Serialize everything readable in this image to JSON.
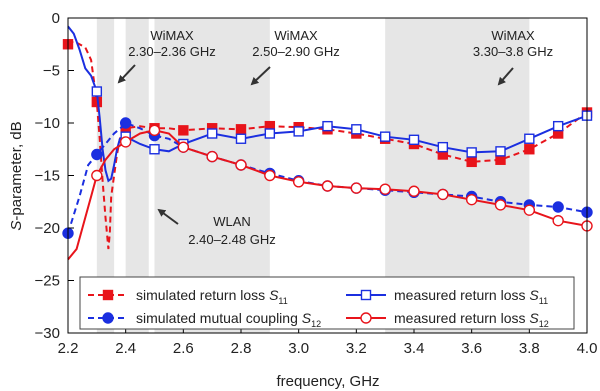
{
  "chart_data": {
    "type": "line",
    "xlabel": "frequency, GHz",
    "ylabel": "S-parameter, dB",
    "xlim": [
      2.2,
      4.0
    ],
    "ylim": [
      -30,
      0
    ],
    "x_ticks": [
      "2.2",
      "2.4",
      "2.6",
      "2.8",
      "3.0",
      "3.2",
      "3.4",
      "3.6",
      "3.8",
      "4.0"
    ],
    "y_ticks": [
      "0",
      "−5",
      "−10",
      "−15",
      "−20",
      "−25",
      "−30"
    ],
    "bands": [
      {
        "x0": 2.3,
        "x1": 2.36,
        "name": "WiMAX",
        "range": "2.30–2.36 GHz"
      },
      {
        "x0": 2.4,
        "x1": 2.48,
        "name": "WLAN",
        "range": "2.40–2.48 GHz"
      },
      {
        "x0": 2.5,
        "x1": 2.9,
        "name": "WiMAX",
        "range": "2.50–2.90 GHz"
      },
      {
        "x0": 3.3,
        "x1": 3.8,
        "name": "WiMAX",
        "range": "3.30–3.8 GHz"
      }
    ],
    "series": [
      {
        "name": "simulated return loss S11",
        "label": "simulated return loss ",
        "symbol": "S",
        "subscript": "11",
        "color": "#e8141b",
        "dash": "6,4",
        "marker": "square-filled",
        "markers_x": [
          2.2,
          2.3,
          2.4,
          2.5,
          2.6,
          2.7,
          2.8,
          2.9,
          3.0,
          3.1,
          3.2,
          3.3,
          3.4,
          3.5,
          3.6,
          3.7,
          3.8,
          3.9,
          4.0
        ],
        "x": [
          2.2,
          2.22,
          2.24,
          2.26,
          2.28,
          2.3,
          2.31,
          2.32,
          2.33,
          2.34,
          2.345,
          2.35,
          2.36,
          2.37,
          2.38,
          2.4,
          2.45,
          2.5,
          2.55,
          2.6,
          2.7,
          2.8,
          2.9,
          3.0,
          3.1,
          3.2,
          3.3,
          3.4,
          3.5,
          3.6,
          3.7,
          3.8,
          3.9,
          4.0
        ],
        "y": [
          -2.5,
          -2.2,
          -2.5,
          -2.8,
          -4.0,
          -8.0,
          -11.5,
          -15.5,
          -19.0,
          -22.0,
          -20.5,
          -17.0,
          -15.0,
          -13.0,
          -11.5,
          -10.5,
          -10.3,
          -10.5,
          -10.5,
          -10.7,
          -10.5,
          -10.6,
          -10.3,
          -10.4,
          -10.6,
          -11.0,
          -11.5,
          -12.0,
          -13.0,
          -13.7,
          -13.5,
          -12.5,
          -11.0,
          -9.0
        ]
      },
      {
        "name": "simulated mutual coupling S12",
        "label": "simulated mutual coupling ",
        "symbol": "S",
        "subscript": "12",
        "color": "#1b2fe0",
        "dash": "6,4",
        "marker": "circle-filled",
        "markers_x": [
          2.2,
          2.3,
          2.4,
          2.5,
          2.6,
          2.7,
          2.8,
          2.9,
          3.0,
          3.1,
          3.2,
          3.3,
          3.4,
          3.5,
          3.6,
          3.7,
          3.8,
          3.9,
          4.0
        ],
        "x": [
          2.2,
          2.24,
          2.27,
          2.3,
          2.33,
          2.36,
          2.39,
          2.4,
          2.45,
          2.5,
          2.55,
          2.6,
          2.7,
          2.8,
          2.9,
          3.0,
          3.1,
          3.2,
          3.3,
          3.4,
          3.5,
          3.6,
          3.7,
          3.8,
          3.9,
          4.0
        ],
        "y": [
          -20.5,
          -17.0,
          -14.0,
          -13.0,
          -12.0,
          -11.0,
          -10.3,
          -10.0,
          -10.5,
          -11.2,
          -11.5,
          -12.3,
          -13.2,
          -14.0,
          -14.8,
          -15.5,
          -16.0,
          -16.2,
          -16.4,
          -16.6,
          -16.8,
          -17.0,
          -17.5,
          -17.8,
          -18.0,
          -18.5
        ]
      },
      {
        "name": "measured return loss S11",
        "label": "measured return loss ",
        "symbol": "S",
        "subscript": "11",
        "color": "#1b2fe0",
        "dash": "",
        "marker": "square-open",
        "markers_x": [
          2.3,
          2.4,
          2.5,
          2.6,
          2.7,
          2.8,
          2.9,
          3.0,
          3.1,
          3.2,
          3.3,
          3.4,
          3.5,
          3.6,
          3.7,
          3.8,
          3.9,
          4.0
        ],
        "x": [
          2.2,
          2.22,
          2.24,
          2.26,
          2.28,
          2.3,
          2.31,
          2.32,
          2.33,
          2.34,
          2.35,
          2.36,
          2.37,
          2.38,
          2.4,
          2.45,
          2.5,
          2.55,
          2.6,
          2.7,
          2.8,
          2.9,
          3.0,
          3.1,
          3.2,
          3.3,
          3.4,
          3.5,
          3.6,
          3.7,
          3.8,
          3.9,
          4.0
        ],
        "y": [
          -0.8,
          -1.5,
          -3.0,
          -4.8,
          -5.5,
          -7.0,
          -9.5,
          -12.5,
          -14.5,
          -15.5,
          -15.3,
          -14.0,
          -12.5,
          -11.5,
          -11.3,
          -12.0,
          -12.5,
          -12.7,
          -12.0,
          -11.0,
          -11.5,
          -11.0,
          -10.8,
          -10.3,
          -10.6,
          -11.3,
          -11.6,
          -12.3,
          -12.8,
          -12.7,
          -11.5,
          -10.3,
          -9.3
        ]
      },
      {
        "name": "measured return loss S12",
        "label": "measured return loss ",
        "symbol": "S",
        "subscript": "12",
        "color": "#e8141b",
        "dash": "",
        "marker": "circle-open",
        "markers_x": [
          2.3,
          2.4,
          2.5,
          2.6,
          2.7,
          2.8,
          2.9,
          3.0,
          3.1,
          3.2,
          3.3,
          3.4,
          3.5,
          3.6,
          3.7,
          3.8,
          3.9,
          4.0
        ],
        "x": [
          2.2,
          2.23,
          2.26,
          2.28,
          2.3,
          2.33,
          2.36,
          2.4,
          2.45,
          2.5,
          2.55,
          2.6,
          2.7,
          2.8,
          2.9,
          3.0,
          3.1,
          3.2,
          3.3,
          3.4,
          3.5,
          3.6,
          3.7,
          3.8,
          3.9,
          4.0
        ],
        "y": [
          -23.0,
          -22.0,
          -19.0,
          -17.0,
          -15.0,
          -13.5,
          -12.5,
          -11.8,
          -11.0,
          -10.7,
          -11.0,
          -12.3,
          -13.2,
          -14.0,
          -15.0,
          -15.6,
          -16.0,
          -16.2,
          -16.3,
          -16.5,
          -16.8,
          -17.3,
          -17.8,
          -18.3,
          -19.3,
          -19.8
        ]
      }
    ]
  },
  "annotations": {
    "wimax1_name": "WiMAX",
    "wimax1_range": "2.30–2.36 GHz",
    "wimax2_name": "WiMAX",
    "wimax2_range": "2.50–2.90 GHz",
    "wimax3_name": "WiMAX",
    "wimax3_range": "3.30–3.8 GHz",
    "wlan_name": "WLAN",
    "wlan_range": "2.40–2.48 GHz"
  }
}
